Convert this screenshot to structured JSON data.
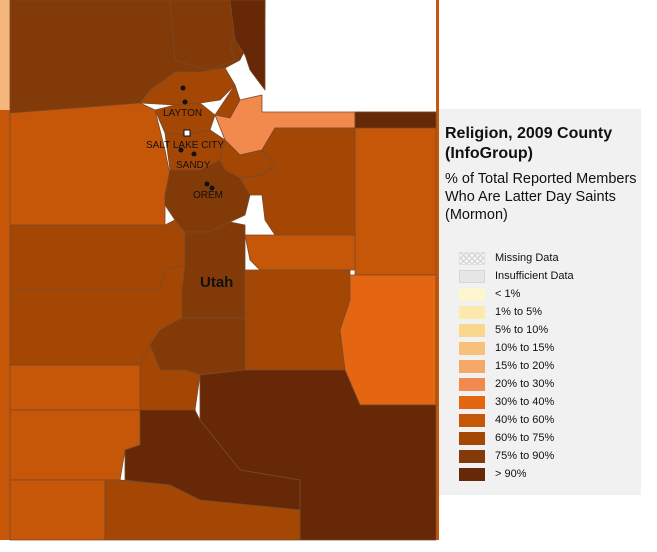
{
  "legend": {
    "title": "Religion, 2009 County (InfoGroup)",
    "subtitle": "% of Total Reported Members Who Are Latter Day Saints (Mormon)",
    "items": [
      {
        "label": "Missing Data",
        "color": "pattern"
      },
      {
        "label": "Insufficient Data",
        "color": "#e6e6e6"
      },
      {
        "label": "< 1%",
        "color": "#fdf6cf"
      },
      {
        "label": "1% to 5%",
        "color": "#fbe9ad"
      },
      {
        "label": "5% to 10%",
        "color": "#f9d78e"
      },
      {
        "label": "10% to 15%",
        "color": "#f7c17a"
      },
      {
        "label": "15% to 20%",
        "color": "#f5a867"
      },
      {
        "label": "20% to 30%",
        "color": "#f38a4d"
      },
      {
        "label": "30% to 40%",
        "color": "#e46512"
      },
      {
        "label": "40% to 60%",
        "color": "#c65608"
      },
      {
        "label": "60% to 75%",
        "color": "#a44705"
      },
      {
        "label": "75% to 90%",
        "color": "#823a09"
      },
      {
        "label": "> 90%",
        "color": "#662806"
      }
    ]
  },
  "map": {
    "state_label": "Utah",
    "cities": [
      {
        "name": "LAYTON",
        "marker": "dot"
      },
      {
        "name": "SALT LAKE CITY",
        "marker": "square"
      },
      {
        "name": "SANDY",
        "marker": "dot"
      },
      {
        "name": "OREM",
        "marker": "dot"
      }
    ]
  }
}
